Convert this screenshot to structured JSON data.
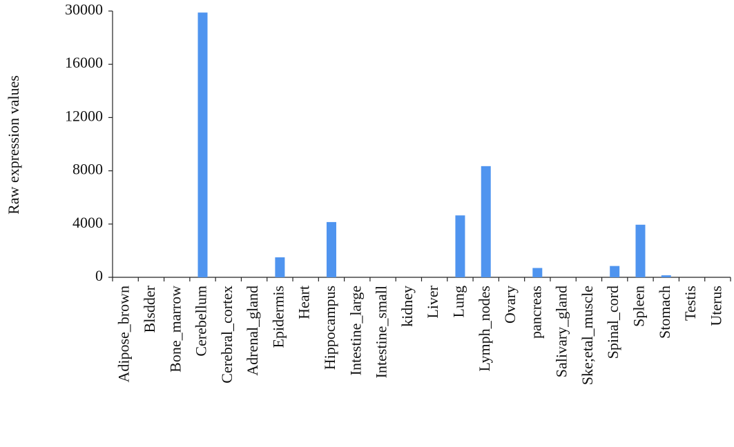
{
  "chart_data": {
    "type": "bar",
    "ylabel": "Raw expression values",
    "categories": [
      "Adipose_brown",
      "Blsdder",
      "Bone_marrow",
      "Cerebellum",
      "Cerebral_cortex",
      "Adrenal_gland",
      "Epidermis",
      "Heart",
      "Hippocampus",
      "Intestine_large",
      "Intestine_small",
      "kidney",
      "Liver",
      "Lung",
      "Lymph_nodes",
      "Ovary",
      "pancreas",
      "Salivary_gland",
      "Ske;etal_muscle",
      "Spinal_cord",
      "Spleen",
      "Stomach",
      "Testis",
      "Uterus"
    ],
    "values": [
      0,
      0,
      0,
      29600,
      0,
      0,
      1500,
      0,
      4150,
      0,
      0,
      0,
      0,
      4650,
      8350,
      0,
      700,
      0,
      0,
      850,
      3950,
      150,
      0,
      0
    ],
    "color": "#4f94ef",
    "ylim": [
      0,
      30000
    ],
    "yticks": [
      0,
      4000,
      8000,
      12000,
      16000,
      30000
    ],
    "tick_spacing": "even"
  }
}
